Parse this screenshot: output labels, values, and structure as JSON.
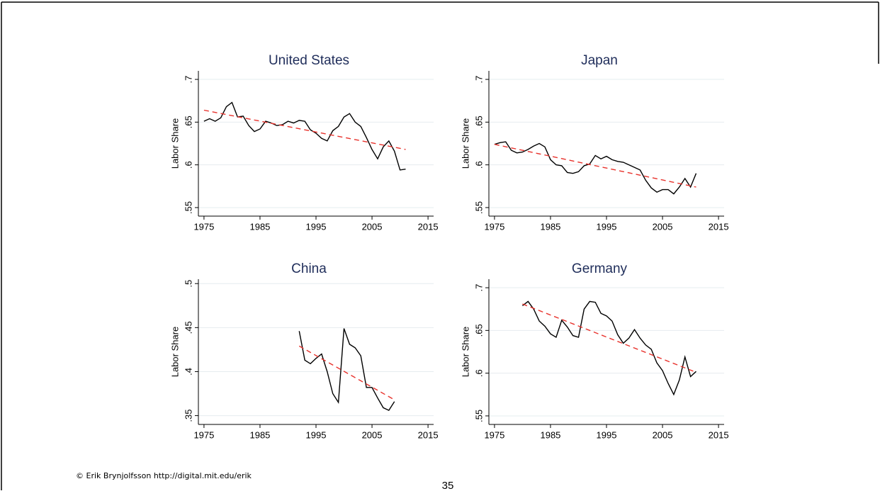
{
  "chart_data": [
    {
      "type": "line",
      "title": "United States",
      "ylabel": "Labor Share",
      "xlim": [
        1974,
        2016
      ],
      "xticks": [
        1975,
        1985,
        1995,
        2005,
        2015
      ],
      "ylim": [
        0.54,
        0.71
      ],
      "yticks": [
        {
          "value": 0.55,
          "label": ".55"
        },
        {
          "value": 0.6,
          "label": ".6"
        },
        {
          "value": 0.65,
          "label": ".65"
        },
        {
          "value": 0.7,
          "label": ".7"
        }
      ],
      "grid": true,
      "series": [
        {
          "color": "#000000",
          "style": "solid",
          "x": [
            1975,
            1976,
            1977,
            1978,
            1979,
            1980,
            1981,
            1982,
            1983,
            1984,
            1985,
            1986,
            1987,
            1988,
            1989,
            1990,
            1991,
            1992,
            1993,
            1994,
            1995,
            1996,
            1997,
            1998,
            1999,
            2000,
            2001,
            2002,
            2003,
            2004,
            2005,
            2006,
            2007,
            2008,
            2009,
            2010,
            2011
          ],
          "values": [
            0.651,
            0.654,
            0.651,
            0.655,
            0.668,
            0.673,
            0.656,
            0.657,
            0.646,
            0.639,
            0.642,
            0.651,
            0.649,
            0.646,
            0.647,
            0.651,
            0.649,
            0.652,
            0.651,
            0.641,
            0.637,
            0.631,
            0.628,
            0.64,
            0.645,
            0.656,
            0.66,
            0.65,
            0.645,
            0.632,
            0.618,
            0.607,
            0.621,
            0.628,
            0.616,
            0.594,
            0.595
          ]
        },
        {
          "color": "#e8322c",
          "style": "dashed",
          "x": [
            1975,
            2011
          ],
          "values": [
            0.664,
            0.618
          ]
        }
      ]
    },
    {
      "type": "line",
      "title": "Japan",
      "ylabel": "Labor Share",
      "xlim": [
        1974,
        2016
      ],
      "xticks": [
        1975,
        1985,
        1995,
        2005,
        2015
      ],
      "ylim": [
        0.54,
        0.71
      ],
      "yticks": [
        {
          "value": 0.55,
          "label": ".55"
        },
        {
          "value": 0.6,
          "label": ".6"
        },
        {
          "value": 0.65,
          "label": ".65"
        },
        {
          "value": 0.7,
          "label": ".7"
        }
      ],
      "grid": true,
      "series": [
        {
          "color": "#000000",
          "style": "solid",
          "x": [
            1975,
            1976,
            1977,
            1978,
            1979,
            1980,
            1981,
            1982,
            1983,
            1984,
            1985,
            1986,
            1987,
            1988,
            1989,
            1990,
            1991,
            1992,
            1993,
            1994,
            1995,
            1996,
            1997,
            1998,
            1999,
            2000,
            2001,
            2002,
            2003,
            2004,
            2005,
            2006,
            2007,
            2008,
            2009,
            2010,
            2011
          ],
          "values": [
            0.624,
            0.626,
            0.627,
            0.617,
            0.614,
            0.615,
            0.618,
            0.622,
            0.625,
            0.621,
            0.606,
            0.6,
            0.599,
            0.591,
            0.59,
            0.592,
            0.599,
            0.601,
            0.611,
            0.607,
            0.61,
            0.606,
            0.604,
            0.603,
            0.6,
            0.597,
            0.594,
            0.582,
            0.573,
            0.568,
            0.571,
            0.571,
            0.566,
            0.574,
            0.584,
            0.574,
            0.59
          ]
        },
        {
          "color": "#e8322c",
          "style": "dashed",
          "x": [
            1975,
            2011
          ],
          "values": [
            0.624,
            0.574
          ]
        }
      ]
    },
    {
      "type": "line",
      "title": "China",
      "ylabel": "Labor Share",
      "xlim": [
        1974,
        2016
      ],
      "xticks": [
        1975,
        1985,
        1995,
        2005,
        2015
      ],
      "ylim": [
        0.34,
        0.505
      ],
      "yticks": [
        {
          "value": 0.35,
          "label": ".35"
        },
        {
          "value": 0.4,
          "label": ".4"
        },
        {
          "value": 0.45,
          "label": ".45"
        },
        {
          "value": 0.5,
          "label": ".5"
        }
      ],
      "grid": true,
      "series": [
        {
          "color": "#000000",
          "style": "solid",
          "x": [
            1992,
            1993,
            1994,
            1995,
            1996,
            1997,
            1998,
            1999,
            2000,
            2001,
            2002,
            2003,
            2004,
            2005,
            2006,
            2007,
            2008,
            2009
          ],
          "values": [
            0.446,
            0.413,
            0.409,
            0.415,
            0.42,
            0.4,
            0.375,
            0.365,
            0.449,
            0.431,
            0.427,
            0.418,
            0.382,
            0.382,
            0.37,
            0.359,
            0.356,
            0.366
          ]
        },
        {
          "color": "#e8322c",
          "style": "dashed",
          "x": [
            1992,
            2009
          ],
          "values": [
            0.429,
            0.368
          ]
        }
      ]
    },
    {
      "type": "line",
      "title": "Germany",
      "ylabel": "Labor Share",
      "xlim": [
        1974,
        2016
      ],
      "xticks": [
        1975,
        1985,
        1995,
        2005,
        2015
      ],
      "ylim": [
        0.54,
        0.71
      ],
      "yticks": [
        {
          "value": 0.55,
          "label": ".55"
        },
        {
          "value": 0.6,
          "label": ".6"
        },
        {
          "value": 0.65,
          "label": ".65"
        },
        {
          "value": 0.7,
          "label": ".7"
        }
      ],
      "grid": true,
      "series": [
        {
          "color": "#000000",
          "style": "solid",
          "x": [
            1980,
            1981,
            1982,
            1983,
            1984,
            1985,
            1986,
            1987,
            1988,
            1989,
            1990,
            1991,
            1992,
            1993,
            1994,
            1995,
            1996,
            1997,
            1998,
            1999,
            2000,
            2001,
            2002,
            2003,
            2004,
            2005,
            2006,
            2007,
            2008,
            2009,
            2010,
            2011
          ],
          "values": [
            0.679,
            0.684,
            0.675,
            0.661,
            0.655,
            0.646,
            0.642,
            0.662,
            0.654,
            0.644,
            0.642,
            0.675,
            0.684,
            0.683,
            0.67,
            0.667,
            0.661,
            0.645,
            0.635,
            0.641,
            0.651,
            0.641,
            0.633,
            0.628,
            0.612,
            0.603,
            0.588,
            0.575,
            0.592,
            0.619,
            0.596,
            0.602
          ]
        },
        {
          "color": "#e8322c",
          "style": "dashed",
          "x": [
            1980,
            2011
          ],
          "values": [
            0.681,
            0.601
          ]
        }
      ]
    }
  ],
  "footer": "© Erik Brynjolfsson http://digital.mit.edu/erik",
  "page_number": "35"
}
